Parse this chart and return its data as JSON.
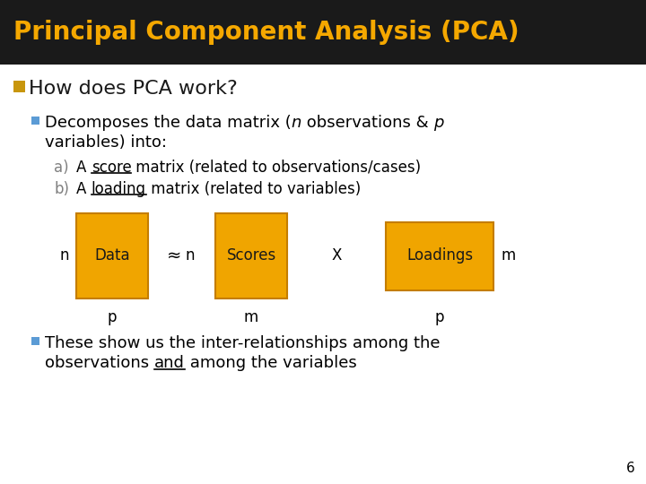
{
  "title": "Principal Component Analysis (PCA)",
  "title_color": "#F5A800",
  "title_bg": "#1a1a1a",
  "slide_bg": "#ffffff",
  "heading_square_color": "#C8960C",
  "heading_text": "How does PCA work?",
  "heading_color": "#1a1a1a",
  "bullet_color": "#5B9BD5",
  "box_color": "#F0A500",
  "box_edge_color": "#C47D00",
  "box_text_color": "#1a1a1a",
  "page_num": "6",
  "sub_label_color": "#808080",
  "label_color": "#000000"
}
